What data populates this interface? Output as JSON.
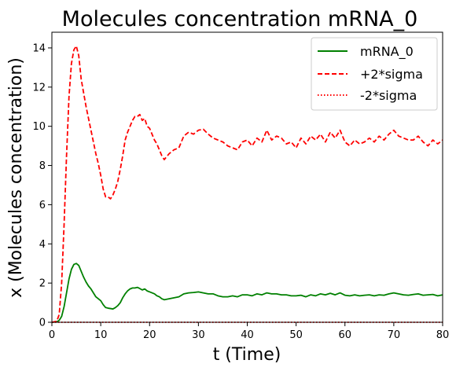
{
  "chart_data": {
    "type": "line",
    "title": "Molecules concentration mRNA_0",
    "xlabel": "t (Time)",
    "ylabel": "x (Molecules concentration)",
    "xlim": [
      0,
      80
    ],
    "ylim": [
      0,
      14.8
    ],
    "xticks": [
      0,
      10,
      20,
      30,
      40,
      50,
      60,
      70,
      80
    ],
    "yticks": [
      0,
      2,
      4,
      6,
      8,
      10,
      12,
      14
    ],
    "grid": false,
    "legend_position": "top-right",
    "series": [
      {
        "name": "mRNA_0",
        "color": "#008000",
        "style": "solid",
        "x": [
          0,
          1,
          1.5,
          2,
          2.5,
          3,
          3.5,
          4,
          4.5,
          5,
          5.5,
          6,
          6.5,
          7,
          7.5,
          8,
          8.5,
          9,
          9.5,
          10,
          10.5,
          11,
          11.5,
          12,
          12.5,
          13,
          13.5,
          14,
          14.5,
          15,
          15.5,
          16,
          16.5,
          17,
          17.5,
          18,
          18.5,
          19,
          19.5,
          20,
          20.5,
          21,
          21.5,
          22,
          22.5,
          23,
          24,
          25,
          26,
          27,
          28,
          29,
          30,
          31,
          32,
          33,
          34,
          35,
          36,
          37,
          38,
          39,
          40,
          41,
          42,
          43,
          44,
          45,
          46,
          47,
          48,
          49,
          50,
          51,
          52,
          53,
          54,
          55,
          56,
          57,
          58,
          59,
          60,
          61,
          62,
          63,
          64,
          65,
          66,
          67,
          68,
          69,
          70,
          71,
          72,
          73,
          74,
          75,
          76,
          77,
          78,
          79,
          80
        ],
        "y": [
          0,
          0.02,
          0.1,
          0.3,
          0.8,
          1.5,
          2.2,
          2.7,
          2.95,
          3.0,
          2.9,
          2.6,
          2.3,
          2.05,
          1.85,
          1.7,
          1.5,
          1.3,
          1.2,
          1.1,
          0.9,
          0.75,
          0.72,
          0.7,
          0.68,
          0.75,
          0.85,
          1.0,
          1.25,
          1.45,
          1.6,
          1.7,
          1.75,
          1.75,
          1.78,
          1.72,
          1.65,
          1.7,
          1.6,
          1.55,
          1.5,
          1.45,
          1.35,
          1.3,
          1.2,
          1.15,
          1.2,
          1.25,
          1.3,
          1.45,
          1.5,
          1.52,
          1.55,
          1.5,
          1.45,
          1.45,
          1.35,
          1.3,
          1.3,
          1.35,
          1.3,
          1.4,
          1.4,
          1.35,
          1.45,
          1.4,
          1.5,
          1.45,
          1.45,
          1.4,
          1.4,
          1.35,
          1.35,
          1.38,
          1.3,
          1.4,
          1.35,
          1.45,
          1.4,
          1.48,
          1.4,
          1.5,
          1.38,
          1.35,
          1.4,
          1.35,
          1.38,
          1.4,
          1.35,
          1.4,
          1.38,
          1.45,
          1.5,
          1.45,
          1.4,
          1.38,
          1.42,
          1.45,
          1.38,
          1.4,
          1.42,
          1.35,
          1.4
        ]
      },
      {
        "name": "+2*sigma",
        "color": "#ff0000",
        "style": "dashed",
        "x": [
          0,
          1,
          1.5,
          2,
          2.5,
          3,
          3.5,
          4,
          4.5,
          5,
          5.5,
          6,
          6.5,
          7,
          7.5,
          8,
          8.5,
          9,
          9.5,
          10,
          10.5,
          11,
          11.5,
          12,
          12.5,
          13,
          13.5,
          14,
          14.5,
          15,
          15.5,
          16,
          16.5,
          17,
          17.5,
          18,
          18.5,
          19,
          19.5,
          20,
          20.5,
          21,
          21.5,
          22,
          22.5,
          23,
          24,
          25,
          26,
          27,
          28,
          29,
          30,
          31,
          32,
          33,
          34,
          35,
          36,
          37,
          38,
          39,
          40,
          41,
          42,
          43,
          44,
          45,
          46,
          47,
          48,
          49,
          50,
          51,
          52,
          53,
          54,
          55,
          56,
          57,
          58,
          59,
          60,
          61,
          62,
          63,
          64,
          65,
          66,
          67,
          68,
          69,
          70,
          71,
          72,
          73,
          74,
          75,
          76,
          77,
          78,
          79,
          80
        ],
        "y": [
          0,
          0.05,
          0.4,
          2.0,
          5.0,
          8.5,
          11.5,
          13.2,
          13.9,
          14.1,
          13.6,
          12.4,
          11.7,
          11.0,
          10.4,
          9.8,
          9.2,
          8.6,
          8.1,
          7.5,
          6.8,
          6.4,
          6.4,
          6.3,
          6.5,
          6.8,
          7.2,
          7.8,
          8.5,
          9.3,
          9.7,
          10.0,
          10.3,
          10.5,
          10.5,
          10.6,
          10.3,
          10.4,
          10.0,
          9.9,
          9.6,
          9.3,
          9.1,
          8.8,
          8.5,
          8.3,
          8.6,
          8.8,
          8.9,
          9.5,
          9.7,
          9.6,
          9.8,
          9.85,
          9.6,
          9.4,
          9.3,
          9.2,
          9.0,
          8.9,
          8.8,
          9.2,
          9.3,
          9.0,
          9.4,
          9.2,
          9.8,
          9.3,
          9.5,
          9.4,
          9.1,
          9.2,
          8.9,
          9.4,
          9.1,
          9.5,
          9.3,
          9.6,
          9.2,
          9.7,
          9.4,
          9.8,
          9.2,
          9.0,
          9.3,
          9.1,
          9.2,
          9.4,
          9.2,
          9.5,
          9.3,
          9.6,
          9.8,
          9.5,
          9.4,
          9.3,
          9.3,
          9.5,
          9.2,
          9.0,
          9.3,
          9.1,
          9.3
        ]
      },
      {
        "name": "-2*sigma",
        "color": "#ff0000",
        "style": "dotted",
        "x": [
          0,
          80
        ],
        "y": [
          0,
          0
        ]
      }
    ]
  }
}
